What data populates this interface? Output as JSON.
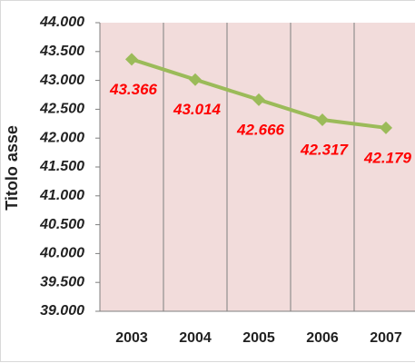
{
  "chart_data": {
    "type": "line",
    "y_label": "Titolo asse",
    "categories": [
      "2003",
      "2004",
      "2005",
      "2006",
      "2007"
    ],
    "series": [
      {
        "color": "#9bbb59",
        "values": [
          43366,
          43014,
          42666,
          42317,
          42179
        ],
        "value_labels": [
          "43.366",
          "43.014",
          "42.666",
          "42.317",
          "42.179"
        ],
        "label_color": "#ff0000"
      }
    ],
    "ylim": [
      39000,
      44000
    ],
    "yticks": [
      {
        "value": 39000,
        "label": "39.000"
      },
      {
        "value": 39500,
        "label": "39.500"
      },
      {
        "value": 40000,
        "label": "40.000"
      },
      {
        "value": 40500,
        "label": "40.500"
      },
      {
        "value": 41000,
        "label": "41.000"
      },
      {
        "value": 41500,
        "label": "41.500"
      },
      {
        "value": 42000,
        "label": "42.000"
      },
      {
        "value": 42500,
        "label": "42.500"
      },
      {
        "value": 43000,
        "label": "43.000"
      },
      {
        "value": 43500,
        "label": "43.500"
      },
      {
        "value": 44000,
        "label": "44.000"
      }
    ],
    "background": "#f2dcdb",
    "grid": "vertical"
  }
}
